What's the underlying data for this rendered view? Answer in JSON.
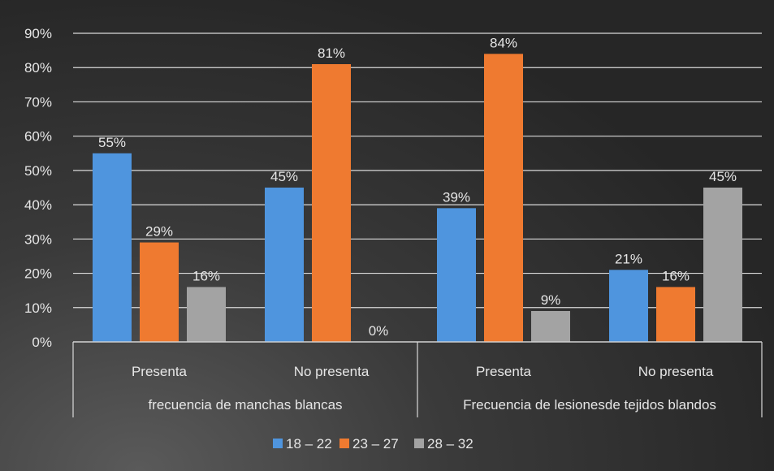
{
  "chart_data": {
    "type": "bar",
    "title": "",
    "xlabel": "",
    "ylabel": "",
    "ylim": [
      0,
      90
    ],
    "yticks": [
      0,
      10,
      20,
      30,
      40,
      50,
      60,
      70,
      80,
      90
    ],
    "ytick_suffix": "%",
    "grid": true,
    "legend_position": "bottom",
    "groups": [
      {
        "label": "frecuencia de manchas blancas",
        "categories": [
          "Presenta",
          "No presenta"
        ]
      },
      {
        "label": "Frecuencia de lesionesde tejidos blandos",
        "categories": [
          "Presenta",
          "No presenta"
        ]
      }
    ],
    "categories": [
      "Presenta",
      "No presenta",
      "Presenta",
      "No presenta"
    ],
    "series": [
      {
        "name": "18 – 22",
        "color": "#4f95de",
        "values": [
          55,
          45,
          39,
          21
        ],
        "labels": [
          "55%",
          "45%",
          "39%",
          "21%"
        ]
      },
      {
        "name": "23 – 27",
        "color": "#ef7a30",
        "values": [
          29,
          81,
          84,
          16
        ],
        "labels": [
          "29%",
          "81%",
          "84%",
          "16%"
        ]
      },
      {
        "name": "28 – 32",
        "color": "#a3a3a3",
        "values": [
          16,
          0,
          9,
          45
        ],
        "labels": [
          "16%",
          "0%",
          "9%",
          "45%"
        ]
      }
    ]
  }
}
